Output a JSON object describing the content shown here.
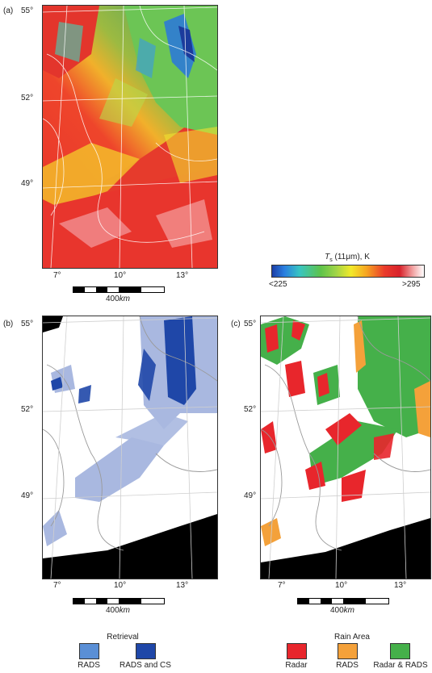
{
  "panels": {
    "a": {
      "letter": "(a)"
    },
    "b": {
      "letter": "(b)"
    },
    "c": {
      "letter": "(c)"
    }
  },
  "lat_ticks": [
    "55°",
    "52°",
    "49°"
  ],
  "lon_ticks": [
    "7°",
    "10°",
    "13°"
  ],
  "scale": {
    "label_value": "400",
    "label_unit": "km"
  },
  "colorbar": {
    "title_prefix": "T",
    "title_sub": "s",
    "title_rest": " (11μm), K",
    "min_label": "<225",
    "max_label": ">295",
    "colors": [
      "#1c3ea6",
      "#2a7ee0",
      "#38c4c2",
      "#5ec34a",
      "#9fd447",
      "#f2e92a",
      "#f6a621",
      "#ea3b2b",
      "#d8222b",
      "#f2a7a7",
      "#ffffff"
    ]
  },
  "retrieval_legend": {
    "title": "Retrieval",
    "items": [
      {
        "label": "RADS",
        "color": "#5a8fd6"
      },
      {
        "label": "RADS and CS",
        "color": "#1f47a8"
      }
    ]
  },
  "rain_legend": {
    "title": "Rain Area",
    "items": [
      {
        "label": "Radar",
        "color": "#e8262c"
      },
      {
        "label": "RADS",
        "color": "#f4a13a"
      },
      {
        "label": "Radar & RADS",
        "color": "#45b04a"
      }
    ]
  },
  "map_colors": {
    "retrieval_light": "#a9b8e0",
    "retrieval_dark": "#1f47a8",
    "mask": "#000000",
    "borders": "#9a9a9a",
    "grid": "#cfcfcf"
  }
}
